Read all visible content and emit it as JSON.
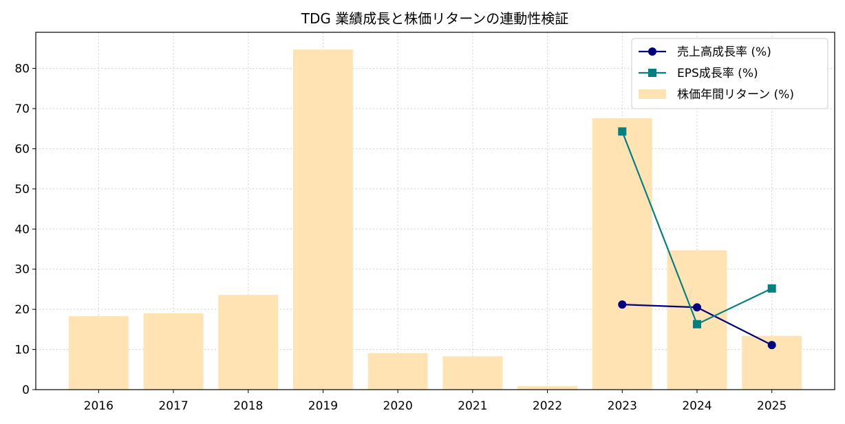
{
  "chart_data": {
    "type": "bar",
    "title": "TDG 業績成長と株価リターンの連動性検証",
    "xlabel": "",
    "ylabel": "",
    "categories": [
      "2016",
      "2017",
      "2018",
      "2019",
      "2020",
      "2021",
      "2022",
      "2023",
      "2024",
      "2025"
    ],
    "ylim": [
      0,
      89
    ],
    "yticks": [
      0,
      10,
      20,
      30,
      40,
      50,
      60,
      70,
      80
    ],
    "grid": true,
    "legend_position": "top-right",
    "series": [
      {
        "name": "株価年間リターン (%)",
        "kind": "bar",
        "color": "#ffe3b3",
        "values": [
          18.3,
          19.0,
          23.6,
          84.7,
          9.1,
          8.3,
          0.9,
          67.6,
          34.7,
          13.4
        ]
      },
      {
        "name": "売上高成長率 (%)",
        "kind": "line",
        "marker": "circle",
        "color": "#000080",
        "values": [
          null,
          null,
          null,
          null,
          null,
          null,
          null,
          21.2,
          20.5,
          11.1
        ]
      },
      {
        "name": "EPS成長率 (%)",
        "kind": "line",
        "marker": "square",
        "color": "#008080",
        "values": [
          null,
          null,
          null,
          null,
          null,
          null,
          null,
          64.3,
          16.3,
          25.2
        ]
      }
    ]
  }
}
